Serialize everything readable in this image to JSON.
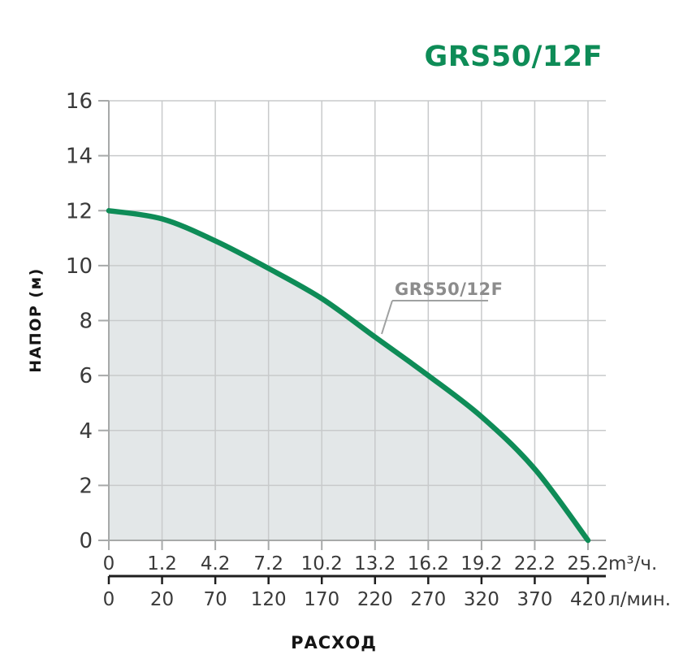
{
  "title": "GRS50/12F",
  "chart_data": {
    "type": "area",
    "title": "GRS50/12F",
    "curve_label": "GRS50/12F",
    "xlabel": "РАСХОД",
    "ylabel": "НАПОР (м)",
    "ylim": [
      0,
      16
    ],
    "y_ticks": [
      "0",
      "2",
      "4",
      "6",
      "8",
      "10",
      "12",
      "14",
      "16"
    ],
    "x_axes": [
      {
        "name": "flow-m3h",
        "unit": "m³/ч.",
        "ticks": [
          "0",
          "1.2",
          "4.2",
          "7.2",
          "10.2",
          "13.2",
          "16.2",
          "19.2",
          "22.2",
          "25.2"
        ]
      },
      {
        "name": "flow-lmin",
        "unit": "л/мин.",
        "ticks": [
          "0",
          "20",
          "70",
          "120",
          "170",
          "220",
          "270",
          "320",
          "370",
          "420"
        ]
      }
    ],
    "grid": true,
    "legend_position": "none",
    "series": [
      {
        "name": "GRS50/12F",
        "x_m3h": [
          0,
          1.2,
          4.2,
          7.2,
          10.2,
          13.2,
          16.2,
          19.2,
          22.2,
          25.2
        ],
        "x_lmin": [
          0,
          20,
          70,
          120,
          170,
          220,
          270,
          320,
          370,
          420
        ],
        "head_m": [
          12,
          11.7,
          10.9,
          9.9,
          8.8,
          7.4,
          6.0,
          4.5,
          2.6,
          0
        ]
      }
    ],
    "colors": {
      "curve": "#0e8c57",
      "title": "#0e8c57",
      "area_fill": "#e3e7e8",
      "grid": "#c8cacb",
      "axis": "#a7a9a9",
      "second_axis": "#1e1e1e",
      "tick_text": "#3a3a3a",
      "annotation_text": "#8c8c8c",
      "annotation_line": "#9fa1a1"
    }
  }
}
